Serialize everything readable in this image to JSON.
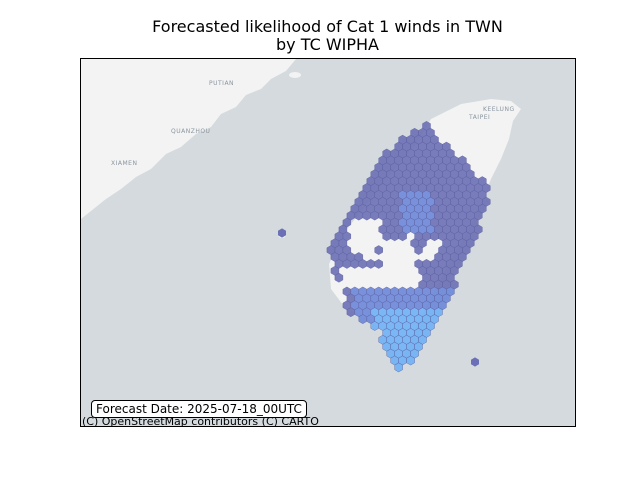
{
  "title_line1": "Forecasted likelihood of Cat 1 winds in TWN",
  "title_line2": "by TC WIPHA",
  "forecast_label": "Forecast Date: 2025-07-18_00UTC",
  "attribution": "(C) OpenStreetMap contributors (C) CARTO",
  "map": {
    "place_labels": [
      "PUTIAN",
      "QUANZHOU",
      "XIAMEN",
      "KEELUNG",
      "TAIPEI"
    ],
    "colors": {
      "sea": "#d4dadd",
      "land": "#f2f3f2",
      "hex_low": "#6b6fb5",
      "hex_mid": "#6c86d8",
      "hex_high": "#6fb0f5"
    }
  }
}
